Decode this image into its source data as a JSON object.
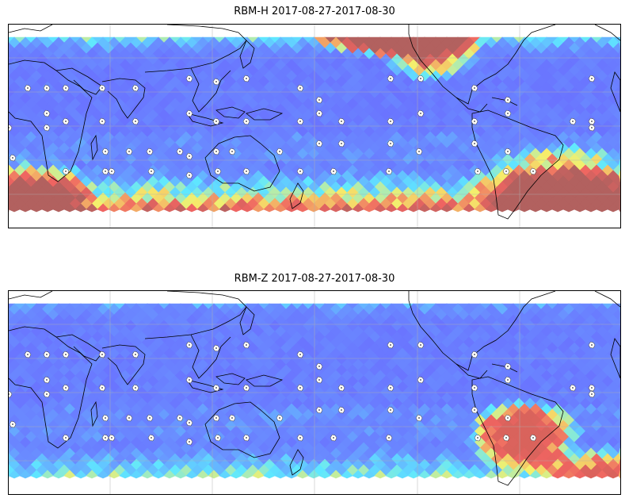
{
  "panels": [
    {
      "id": "top",
      "title": "RBM-H 2017-08-27-2017-08-30",
      "hot_regions": "high-latitude bands and north-east Pacific",
      "palette": {
        "cool": "#6a6cff",
        "mid": "#5fe8ff",
        "warm": "#f6ef6a",
        "hot": "#ef6461",
        "deep": "#b2615f"
      }
    },
    {
      "id": "bottom",
      "title": "RBM-Z 2017-08-27-2017-08-30",
      "hot_regions": "southern South America",
      "palette": {
        "cool": "#6a6cff",
        "mid": "#5fe8ff",
        "warm": "#f6ef6a",
        "hot": "#ef6461",
        "deep": "#d9635c"
      }
    }
  ],
  "map": {
    "projection": "plate-carree",
    "gridlines": true,
    "coastlines": true,
    "colormap": "jet",
    "markers": "white-station-markers"
  }
}
